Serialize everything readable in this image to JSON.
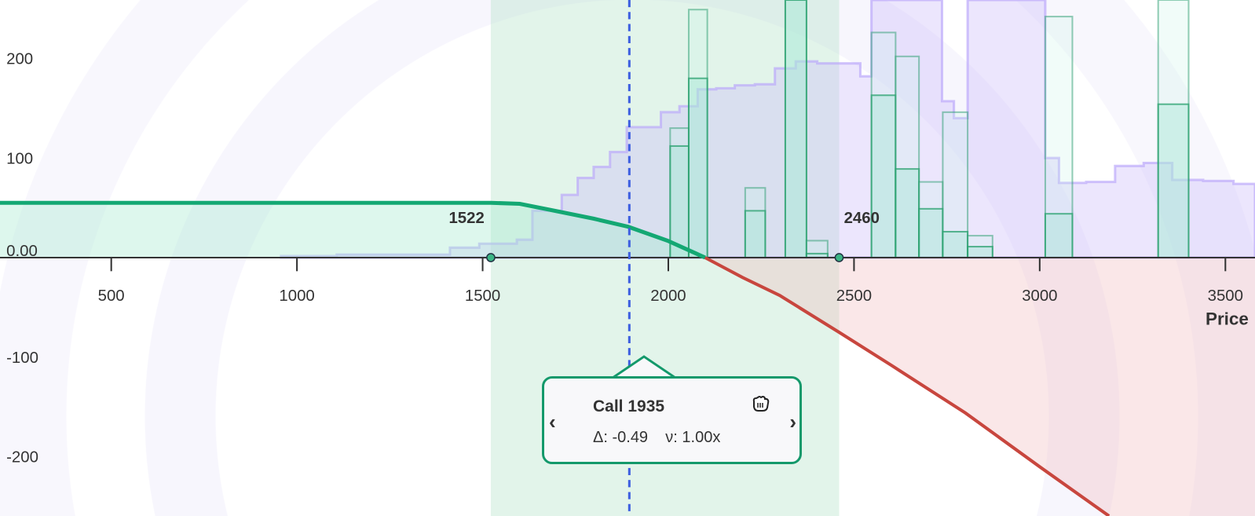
{
  "chart_data": {
    "type": "line",
    "xlabel": "Price",
    "ylabel": "",
    "xlim": [
      200,
      3580
    ],
    "ylim": [
      -260,
      258
    ],
    "x_ticks": [
      500,
      1000,
      1500,
      2000,
      2500,
      3000,
      3500
    ],
    "x_tick_labels": [
      "500",
      "1000",
      "1500",
      "2000",
      "2500",
      "3000",
      "3500"
    ],
    "y_ticks": [
      200,
      100,
      0,
      -100,
      -200
    ],
    "y_tick_labels": [
      "200",
      "100",
      "0.00",
      "-100",
      "-200"
    ],
    "grid": false,
    "payoff": {
      "points": [
        [
          200,
          55
        ],
        [
          1522,
          55
        ],
        [
          1600,
          54
        ],
        [
          1681,
          48
        ],
        [
          1800,
          39
        ],
        [
          1892,
          31
        ],
        [
          1998,
          17
        ],
        [
          2099,
          0
        ],
        [
          2200,
          -20
        ],
        [
          2300,
          -38
        ],
        [
          2460,
          -75
        ],
        [
          2600,
          -108
        ],
        [
          2800,
          -156
        ],
        [
          3000,
          -210
        ],
        [
          3185,
          -259
        ],
        [
          3400,
          -315
        ],
        [
          3600,
          -362
        ]
      ],
      "profit_color": "#14a873",
      "loss_color": "#c8463e"
    },
    "breakevens": [
      {
        "value": 1522,
        "label": "1522"
      },
      {
        "value": 2460,
        "label": "2460"
      }
    ],
    "range_band": [
      1522,
      2460
    ],
    "current_price": 1895,
    "distribution_steps": [
      [
        957,
        1.5
      ],
      [
        1107,
        3
      ],
      [
        1412,
        10
      ],
      [
        1491,
        14
      ],
      [
        1592,
        18
      ],
      [
        1634,
        47
      ],
      [
        1713,
        63
      ],
      [
        1756,
        80
      ],
      [
        1799,
        91
      ],
      [
        1843,
        106
      ],
      [
        1888,
        131
      ],
      [
        1980,
        146
      ],
      [
        2030,
        152
      ],
      [
        2079,
        169
      ],
      [
        2129,
        170
      ],
      [
        2179,
        173
      ],
      [
        2233,
        174
      ],
      [
        2287,
        190
      ],
      [
        2343,
        197
      ],
      [
        2401,
        195
      ],
      [
        2517,
        182
      ],
      [
        2547,
        300
      ],
      [
        2737,
        157
      ],
      [
        2769,
        140
      ],
      [
        2806,
        300
      ],
      [
        3015,
        100
      ],
      [
        3052,
        75
      ],
      [
        3125,
        76
      ],
      [
        3203,
        92
      ],
      [
        3280,
        95
      ],
      [
        3357,
        78
      ],
      [
        3440,
        77
      ],
      [
        3522,
        74
      ],
      [
        3650,
        74
      ]
    ],
    "strike_bars": [
      {
        "from": 2005,
        "to": 2055,
        "outer": 130,
        "inner": 112
      },
      {
        "from": 2055,
        "to": 2105,
        "outer": 249,
        "inner": 180
      },
      {
        "from": 2207,
        "to": 2261,
        "outer": 70,
        "inner": 47
      },
      {
        "from": 2315,
        "to": 2372,
        "outer": 300,
        "inner": 290
      },
      {
        "from": 2372,
        "to": 2429,
        "outer": 17,
        "inner": 4
      },
      {
        "from": 2547,
        "to": 2612,
        "outer": 226,
        "inner": 163
      },
      {
        "from": 2612,
        "to": 2675,
        "outer": 202,
        "inner": 89
      },
      {
        "from": 2675,
        "to": 2739,
        "outer": 76,
        "inner": 49
      },
      {
        "from": 2739,
        "to": 2806,
        "outer": 146,
        "inner": 26
      },
      {
        "from": 2806,
        "to": 2873,
        "outer": 22,
        "inner": 11
      },
      {
        "from": 3015,
        "to": 3088,
        "outer": 242,
        "inner": 44
      },
      {
        "from": 3319,
        "to": 3401,
        "outer": 300,
        "inner": 154
      }
    ],
    "colors": {
      "range_band": "#c9ebd9",
      "distribution": "#c6b4fa",
      "strike_bar": "#2e9e74",
      "current_price_line": "#3e5fe0"
    }
  },
  "tooltip": {
    "title": "Call 1935",
    "delta": "Δ: -0.49",
    "volume": "ν: 1.00x",
    "greeks_line": "Δ: -0.49    ν: 1.00x",
    "prev_icon": "chevron-left-icon",
    "next_icon": "chevron-right-icon",
    "grab_icon": "grab-hand-icon",
    "prev_label": "‹",
    "next_label": "›"
  }
}
